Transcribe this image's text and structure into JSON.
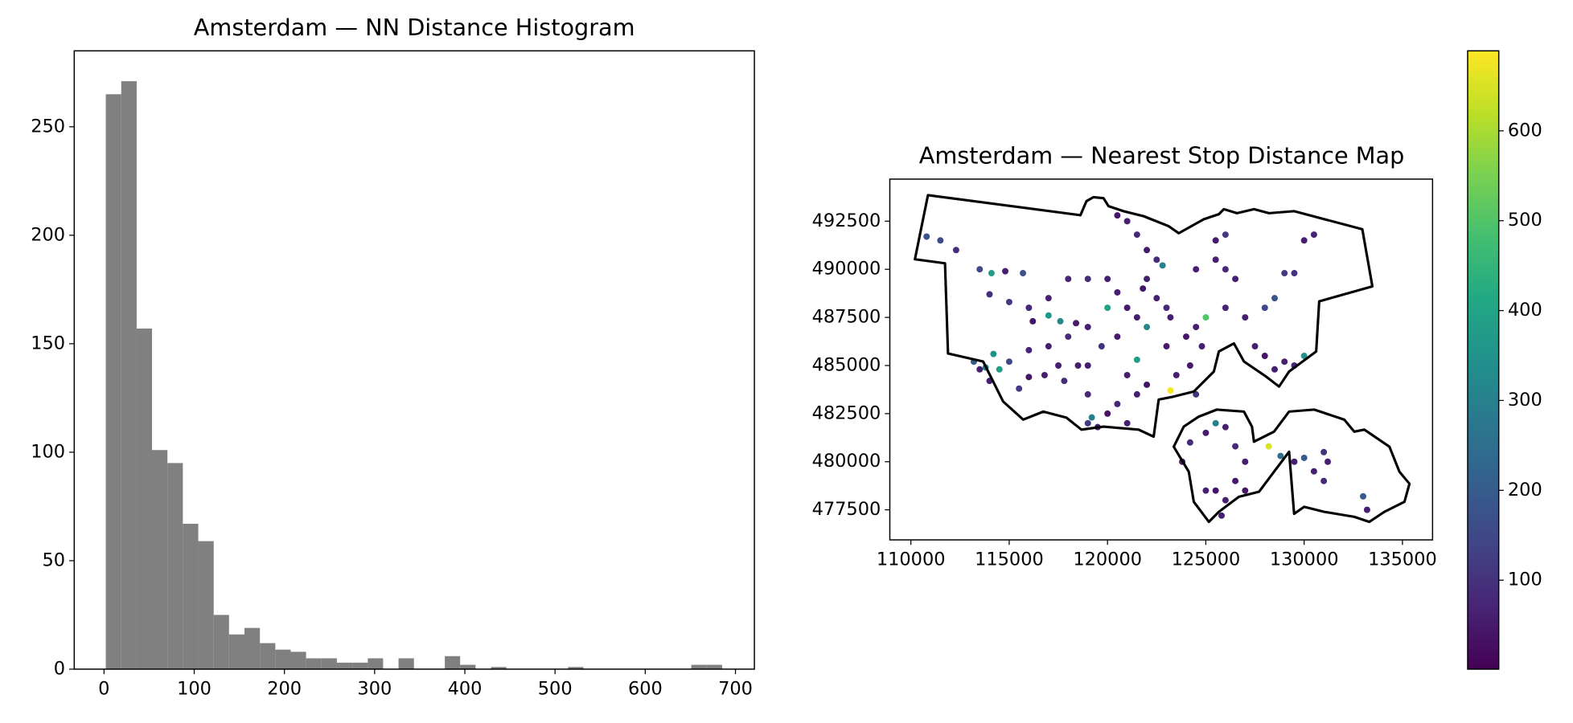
{
  "chart_data": [
    {
      "type": "histogram",
      "title": "Amsterdam — NN Distance Histogram",
      "color": "#808080",
      "bins": [
        2.0,
        19.1,
        36.2,
        53.2,
        70.3,
        87.4,
        104.5,
        121.6,
        138.6,
        155.7,
        172.8,
        189.9,
        207.0,
        224.0,
        241.1,
        258.2,
        275.3,
        292.4,
        309.4,
        326.5,
        343.6,
        360.7,
        377.8,
        394.8,
        411.9,
        429.0,
        446.1,
        463.2,
        480.2,
        497.3,
        514.4,
        531.5,
        548.6,
        565.6,
        582.7,
        599.8,
        616.9,
        634.0,
        651.0,
        668.1,
        685.2
      ],
      "values": [
        265,
        271,
        157,
        101,
        95,
        67,
        59,
        25,
        16,
        19,
        12,
        9,
        8,
        5,
        5,
        3,
        3,
        5,
        0,
        5,
        0,
        0,
        6,
        2,
        0,
        1,
        0,
        0,
        0,
        0,
        1,
        0,
        0,
        0,
        0,
        0,
        0,
        0,
        2,
        2
      ],
      "xlim": [
        -33,
        721
      ],
      "ylim": [
        0,
        285
      ],
      "xticks": [
        0,
        100,
        200,
        300,
        400,
        500,
        600,
        700
      ],
      "yticks": [
        0,
        50,
        100,
        150,
        200,
        250
      ]
    },
    {
      "type": "scatter",
      "title": "Amsterdam — Nearest Stop Distance Map",
      "colormap": "viridis",
      "x": [
        110800,
        111500,
        112300,
        113500,
        114100,
        114800,
        115700,
        114000,
        115000,
        116000,
        117000,
        118000,
        119000,
        120000,
        113200,
        113800,
        114200,
        114500,
        115000,
        116000,
        117000,
        118000,
        116200,
        117000,
        117600,
        118400,
        119000,
        119000,
        119000,
        119000,
        119200,
        119500,
        120000,
        120500,
        121000,
        120000,
        120500,
        121000,
        121500,
        122000,
        121500,
        121000,
        122000,
        121500,
        120500,
        121000,
        121500,
        122000,
        122500,
        122800,
        122000,
        121800,
        122500,
        123000,
        123200,
        123000,
        124000,
        124500,
        125000,
        124800,
        124200,
        123500,
        123200,
        124500,
        125500,
        126000,
        126500,
        126000,
        125500,
        126000,
        124500,
        127000,
        128000,
        128500,
        129000,
        129500,
        130000,
        130500,
        127500,
        128000,
        129000,
        129500,
        130000,
        128500,
        120500,
        119700,
        118500,
        117500,
        117800,
        116800,
        116000,
        115500,
        114000,
        113500,
        123800,
        124200,
        125000,
        125500,
        126000,
        126500,
        127000,
        126500,
        125500,
        125000,
        126000,
        125800,
        127000,
        128200,
        128800,
        129500,
        130000,
        130500,
        131000,
        131200,
        131000,
        133000,
        133200
      ],
      "y": [
        491700,
        491500,
        491000,
        490000,
        489800,
        489900,
        489800,
        488700,
        488300,
        488000,
        488500,
        489500,
        489500,
        489500,
        485200,
        484900,
        485600,
        484800,
        485200,
        485800,
        486000,
        486500,
        487300,
        487600,
        487300,
        487200,
        487000,
        485000,
        483500,
        482000,
        482300,
        481800,
        482500,
        483000,
        482000,
        488000,
        488800,
        488000,
        487500,
        487000,
        485300,
        484500,
        484000,
        483500,
        492800,
        492500,
        491800,
        491000,
        490500,
        490200,
        489500,
        489000,
        488500,
        488000,
        487500,
        486000,
        486500,
        487000,
        487500,
        486000,
        485000,
        484500,
        483700,
        483500,
        490500,
        490000,
        489500,
        488000,
        491500,
        491800,
        490000,
        487500,
        488000,
        488500,
        489800,
        489800,
        491500,
        491800,
        486000,
        485500,
        485200,
        485000,
        485500,
        484800,
        486500,
        486000,
        485000,
        485000,
        484200,
        484500,
        484400,
        483800,
        484200,
        484800,
        480000,
        481000,
        481500,
        482000,
        481800,
        480800,
        480000,
        479000,
        478500,
        478500,
        478000,
        477200,
        478500,
        480800,
        480300,
        480000,
        480200,
        479500,
        480500,
        480000,
        479000,
        478200,
        477500
      ],
      "values": [
        180,
        160,
        90,
        150,
        380,
        60,
        170,
        90,
        120,
        80,
        60,
        70,
        90,
        60,
        200,
        300,
        350,
        380,
        150,
        70,
        60,
        80,
        40,
        360,
        320,
        50,
        60,
        60,
        80,
        120,
        300,
        60,
        40,
        80,
        60,
        400,
        60,
        50,
        60,
        320,
        380,
        60,
        40,
        60,
        40,
        60,
        80,
        50,
        90,
        300,
        60,
        40,
        60,
        80,
        60,
        50,
        40,
        60,
        500,
        60,
        50,
        60,
        680,
        100,
        60,
        80,
        60,
        70,
        50,
        120,
        60,
        60,
        150,
        180,
        120,
        100,
        60,
        70,
        60,
        40,
        60,
        80,
        350,
        60,
        50,
        100,
        60,
        60,
        90,
        60,
        40,
        120,
        60,
        60,
        60,
        90,
        50,
        300,
        60,
        80,
        60,
        50,
        40,
        60,
        60,
        60,
        40,
        650,
        250,
        60,
        200,
        60,
        100,
        60,
        80,
        200,
        60
      ],
      "xlim": [
        108929,
        136531
      ],
      "ylim": [
        475938,
        494687
      ],
      "xticks": [
        110000,
        115000,
        120000,
        125000,
        130000,
        135000
      ],
      "yticks": [
        477500,
        480000,
        482500,
        485000,
        487500,
        490000,
        492500
      ],
      "clim": [
        1,
        689
      ],
      "cticks": [
        100,
        200,
        300,
        400,
        500,
        600
      ]
    }
  ]
}
